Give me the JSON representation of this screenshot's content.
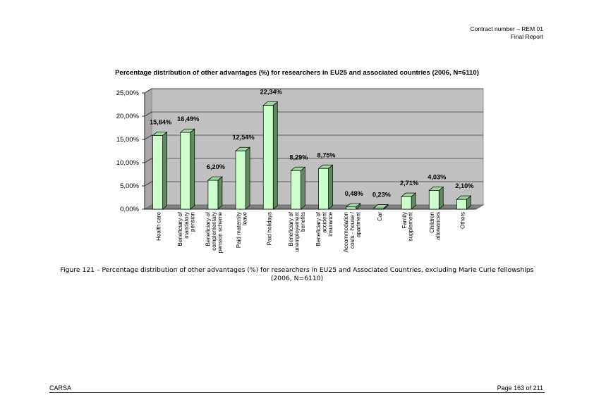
{
  "header": {
    "line1": "Contract number – REM 01",
    "line2": "Final Report"
  },
  "chart_data": {
    "type": "bar",
    "title": "Percentage distribution of other advantages (%) for researchers in EU25 and associated countries (2006, N=6110)",
    "categories": [
      [
        "Health care"
      ],
      [
        "Beneficiary of",
        "mandatory",
        "pension"
      ],
      [
        "Beneficiary of",
        "complementary",
        "pension scheme"
      ],
      [
        "Paid maternity",
        "leave"
      ],
      [
        "Paid holidays"
      ],
      [
        "Beneficiary of",
        "unemployement",
        "benefits"
      ],
      [
        "Beneficiary of",
        "accident",
        "insurance"
      ],
      [
        "Accommodation",
        "costs - house /",
        "apartment"
      ],
      [
        "Car"
      ],
      [
        "Family",
        "supplement"
      ],
      [
        "Children",
        "allowances"
      ],
      [
        "Others"
      ]
    ],
    "values": [
      15.84,
      16.49,
      6.2,
      12.54,
      22.34,
      8.29,
      8.75,
      0.48,
      0.23,
      2.71,
      4.03,
      2.1
    ],
    "value_labels": [
      "15,84%",
      "16,49%",
      "6,20%",
      "12,54%",
      "22,34%",
      "8,29%",
      "8,75%",
      "0,48%",
      "0,23%",
      "2,71%",
      "4,03%",
      "2,10%"
    ],
    "y_ticks": [
      "0,00%",
      "5,00%",
      "10,00%",
      "15,00%",
      "20,00%",
      "25,00%"
    ],
    "ylim": [
      0,
      25
    ],
    "grid": true,
    "colors": {
      "bar_front": "#ccffcc",
      "bar_side": "#5f8a5f",
      "bar_top": "#9fd79f",
      "wall": "#c0c0c0",
      "floor": "#808080",
      "grid": "#000000"
    }
  },
  "caption": "Figure 121 – Percentage distribution of other advantages (%) for researchers in EU25 and Associated Countries, excluding Marie Curie fellowships (2006, N=6110)",
  "footer": {
    "left": "CARSA",
    "right": "Page 163 of 211"
  }
}
